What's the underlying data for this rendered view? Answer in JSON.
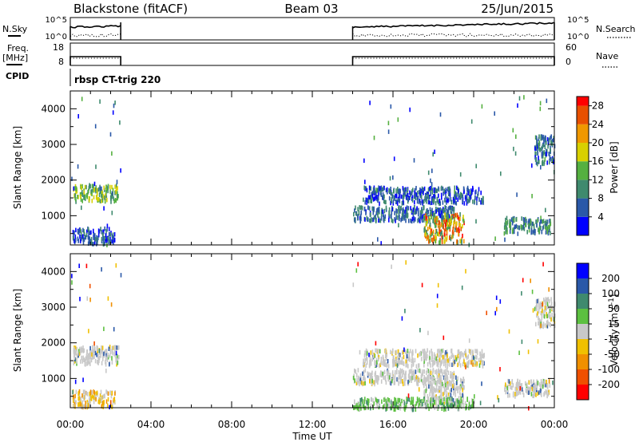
{
  "header": {
    "station": "Blackstone (fitACF)",
    "beam": "Beam 03",
    "date": "25/Jun/2015"
  },
  "top_panels": {
    "nsky_label": "N.Sky",
    "nsky_ticks": [
      "10^5",
      "10^0"
    ],
    "nsearch_label": "N.Search",
    "nsearch_ticks": [
      "10^5",
      "10^0"
    ],
    "freq_label": "Freq.",
    "freq_unit": "[MHz]",
    "freq_ticks": [
      "18",
      "8"
    ],
    "nave_label": "Nave",
    "nave_ticks": [
      "60",
      "0"
    ],
    "cpid_label": "CPID",
    "cpid_value": "rbsp CT-trig 220"
  },
  "chart_data": [
    {
      "type": "scatter",
      "panel": "power",
      "title": "",
      "xlabel": "",
      "ylabel": "Slant Range [km]",
      "xlim_hours": [
        0,
        24
      ],
      "ylim": [
        180,
        4500
      ],
      "yticks": [
        "1000",
        "2000",
        "3000",
        "4000"
      ],
      "colorbar_label": "Power [dB]",
      "colorbar_ticks": [
        "4",
        "8",
        "12",
        "16",
        "20",
        "24",
        "28"
      ],
      "colorbar_range": [
        0,
        30
      ],
      "colors": [
        "#0000ff",
        "#2a58a8",
        "#3f8a6e",
        "#55b040",
        "#d8d000",
        "#f09800",
        "#e85000",
        "#ff0000"
      ],
      "data_windows_hours": [
        [
          0.0,
          2.5
        ],
        [
          14.0,
          24.0
        ]
      ],
      "echo_regions": [
        {
          "name": "early-band",
          "t": [
            0.1,
            2.4
          ],
          "range": [
            1450,
            1900
          ],
          "level": 14
        },
        {
          "name": "early-low",
          "t": [
            0.1,
            2.2
          ],
          "range": [
            250,
            700
          ],
          "level": 6
        },
        {
          "name": "afternoon-band-1",
          "t": [
            14.0,
            19.0
          ],
          "range": [
            900,
            1300
          ],
          "level": 7
        },
        {
          "name": "afternoon-band-2",
          "t": [
            14.5,
            20.5
          ],
          "range": [
            1400,
            1850
          ],
          "level": 6
        },
        {
          "name": "strong-echo",
          "t": [
            17.5,
            19.5
          ],
          "range": [
            300,
            1100
          ],
          "level": 26
        },
        {
          "name": "late-near",
          "t": [
            21.5,
            23.8
          ],
          "range": [
            550,
            1000
          ],
          "level": 10
        },
        {
          "name": "late-far",
          "t": [
            23.0,
            24.0
          ],
          "range": [
            2500,
            3300
          ],
          "level": 8
        }
      ]
    },
    {
      "type": "scatter",
      "panel": "velocity",
      "title": "",
      "xlabel": "Time UT",
      "ylabel": "Slant Range [km]",
      "xlim_hours": [
        0,
        24
      ],
      "ylim": [
        180,
        4500
      ],
      "xticks": [
        "00:00",
        "04:00",
        "08:00",
        "12:00",
        "16:00",
        "20:00",
        "00:00"
      ],
      "yticks": [
        "1000",
        "2000",
        "3000",
        "4000"
      ],
      "colorbar_label": "Velocity [m s^-1]",
      "colorbar_ticks": [
        "200",
        "100",
        "50",
        "15",
        "-15",
        "-50",
        "-100",
        "-200"
      ],
      "colors": [
        "#0000ff",
        "#2a58a8",
        "#3f8a6e",
        "#5cc040",
        "#c8c8c8",
        "#f0c000",
        "#f09000",
        "#f05000",
        "#ff0000"
      ],
      "echo_regions": [
        {
          "name": "early-band",
          "t": [
            0.1,
            2.4
          ],
          "range": [
            1450,
            1950
          ],
          "velocity": 0
        },
        {
          "name": "early-low",
          "t": [
            0.1,
            2.2
          ],
          "range": [
            250,
            700
          ],
          "velocity": -40
        },
        {
          "name": "afternoon-band-1",
          "t": [
            14.0,
            19.0
          ],
          "range": [
            900,
            1300
          ],
          "velocity": 0
        },
        {
          "name": "afternoon-band-2",
          "t": [
            14.5,
            20.5
          ],
          "range": [
            1400,
            1850
          ],
          "velocity": 0
        },
        {
          "name": "strong-echo",
          "t": [
            17.5,
            19.5
          ],
          "range": [
            300,
            1100
          ],
          "velocity": 0
        },
        {
          "name": "ground-low",
          "t": [
            14.0,
            20.0
          ],
          "range": [
            180,
            500
          ],
          "velocity": 30
        },
        {
          "name": "late-near",
          "t": [
            21.5,
            23.8
          ],
          "range": [
            550,
            1000
          ],
          "velocity": 0
        },
        {
          "name": "late-far",
          "t": [
            23.0,
            24.0
          ],
          "range": [
            2500,
            3300
          ],
          "velocity": 0
        }
      ]
    }
  ]
}
